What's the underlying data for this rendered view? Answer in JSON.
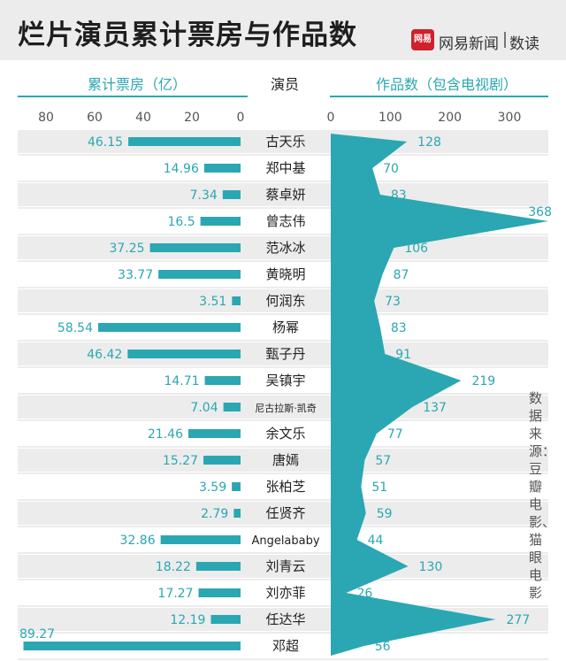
{
  "header": {
    "title": "烂片演员累计票房与作品数",
    "logo_text": "网易",
    "brand": "网易新闻",
    "brand_sub": "数读"
  },
  "source_note": "数据来源：豆瓣电影、猫眼电影",
  "chart_data": [
    {
      "type": "bar",
      "orientation": "horizontal",
      "title": "累计票房（亿）",
      "direction": "right-to-left",
      "xlim": [
        0,
        80
      ],
      "ticks": [
        80,
        60,
        40,
        20,
        0
      ],
      "category_label": "演员",
      "categories": [
        "古天乐",
        "郑中基",
        "蔡卓妍",
        "曾志伟",
        "范冰冰",
        "黄晓明",
        "何润东",
        "杨幂",
        "甄子丹",
        "吴镇宇",
        "尼古拉斯·凯奇",
        "余文乐",
        "唐嫣",
        "张柏芝",
        "任贤齐",
        "Angelababy",
        "刘青云",
        "刘亦菲",
        "任达华",
        "邓超"
      ],
      "values": [
        46.15,
        14.96,
        7.34,
        16.5,
        37.25,
        33.77,
        3.51,
        58.54,
        46.42,
        14.71,
        7.04,
        21.46,
        15.27,
        3.59,
        2.79,
        32.86,
        18.22,
        17.27,
        12.19,
        89.27
      ],
      "value_labels": [
        "46.15",
        "14.96",
        "7.34",
        "16.5",
        "37.25",
        "33.77",
        "3.51",
        "58.54",
        "46.42",
        "14.71",
        "7.04",
        "21.46",
        "15.27",
        "3.59",
        "2.79",
        "32.86",
        "18.22",
        "17.27",
        "12.19",
        "89.27"
      ],
      "color": "#2aa7b2"
    },
    {
      "type": "area",
      "orientation": "horizontal",
      "title": "作品数（包含电视剧）",
      "xlim": [
        0,
        350
      ],
      "ticks": [
        0,
        100,
        200,
        300
      ],
      "categories": [
        "古天乐",
        "郑中基",
        "蔡卓妍",
        "曾志伟",
        "范冰冰",
        "黄晓明",
        "何润东",
        "杨幂",
        "甄子丹",
        "吴镇宇",
        "尼古拉斯·凯奇",
        "余文乐",
        "唐嫣",
        "张柏芝",
        "任贤齐",
        "Angelababy",
        "刘青云",
        "刘亦菲",
        "任达华",
        "邓超"
      ],
      "values": [
        128,
        70,
        83,
        368,
        106,
        87,
        73,
        83,
        91,
        219,
        137,
        77,
        57,
        51,
        59,
        44,
        130,
        26,
        277,
        56
      ],
      "value_labels": [
        "128",
        "70",
        "83",
        "368",
        "106",
        "87",
        "73",
        "83",
        "91",
        "219",
        "137",
        "77",
        "57",
        "51",
        "59",
        "44",
        "130",
        "26",
        "277",
        "56"
      ],
      "color": "#2aa7b2"
    }
  ]
}
